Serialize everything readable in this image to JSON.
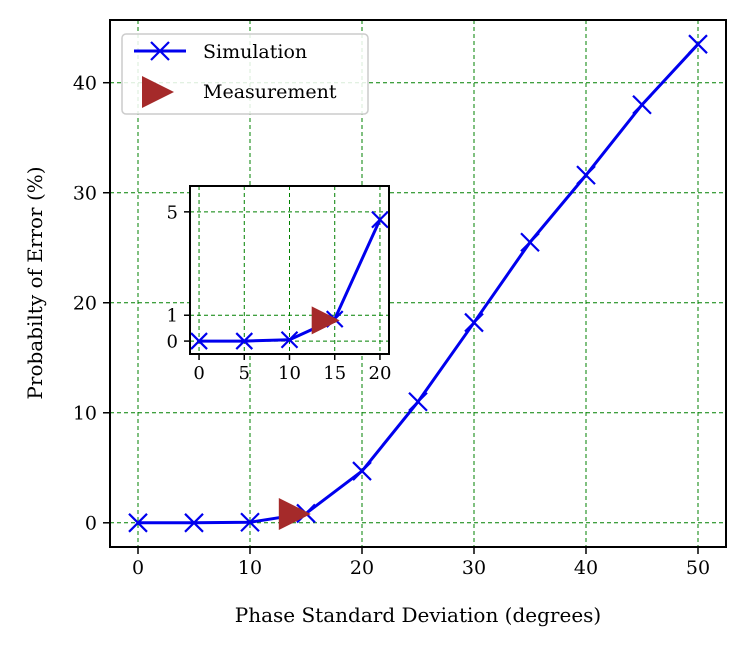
{
  "chart_data": {
    "type": "line",
    "xlabel": "Phase Standard Deviation (degrees)",
    "ylabel": "Probabilty of Error (%)",
    "xlim": [
      -2.5,
      52.5
    ],
    "ylim": [
      -2.2,
      45.7
    ],
    "xticks": [
      0,
      10,
      20,
      30,
      40,
      50
    ],
    "yticks": [
      0,
      10,
      20,
      30,
      40
    ],
    "grid": true,
    "legend_position": "top-left",
    "series": [
      {
        "name": "Simulation",
        "marker": "x",
        "x": [
          0,
          5,
          10,
          15,
          20,
          25,
          30,
          35,
          40,
          45,
          50
        ],
        "y": [
          0.0,
          0.0,
          0.05,
          0.85,
          4.7,
          11.0,
          18.2,
          25.5,
          31.6,
          38.0,
          43.5
        ]
      },
      {
        "name": "Measurement",
        "marker": "triangle-right",
        "x": [
          14
        ],
        "y": [
          0.8
        ]
      }
    ],
    "inset": {
      "xlim": [
        -1,
        21
      ],
      "ylim": [
        -0.5,
        6.0
      ],
      "xticks": [
        0,
        5,
        10,
        15,
        20
      ],
      "yticks": [
        0,
        1,
        5
      ],
      "x": [
        0,
        5,
        10,
        15,
        20
      ],
      "y": [
        0.0,
        0.0,
        0.05,
        0.85,
        4.7
      ],
      "measurement": {
        "x": [
          14
        ],
        "y": [
          0.8
        ]
      }
    }
  },
  "colors": {
    "simulation": "#0000ee",
    "measurement": "#a52a2a",
    "grid": "#008000"
  }
}
